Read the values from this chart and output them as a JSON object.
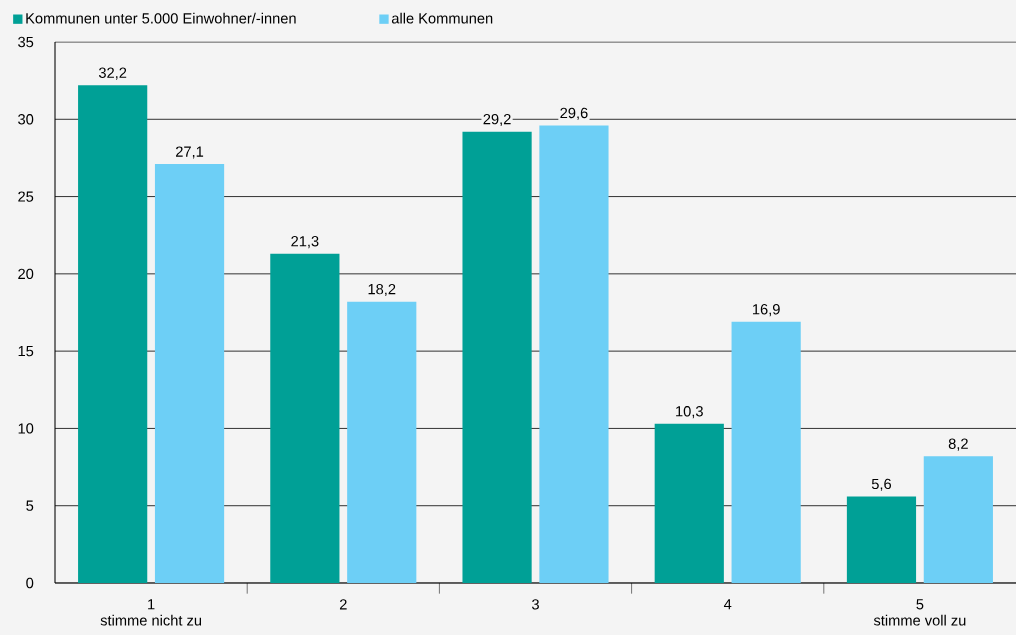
{
  "chart_data": {
    "type": "bar",
    "categories": [
      "1",
      "2",
      "3",
      "4",
      "5"
    ],
    "series": [
      {
        "name": "Kommunen unter 5.000 Einwohner/-innen",
        "color": "#00a096",
        "values": [
          32.2,
          21.3,
          29.2,
          10.3,
          5.6
        ],
        "value_labels": [
          "32,2",
          "21,3",
          "29,2",
          "10,3",
          "5,6"
        ]
      },
      {
        "name": "alle Kommunen",
        "color": "#6dcff6",
        "values": [
          27.1,
          18.2,
          29.6,
          16.9,
          8.2
        ],
        "value_labels": [
          "27,1",
          "18,2",
          "29,6",
          "16,9",
          "8,2"
        ]
      }
    ],
    "ylim": [
      0,
      35
    ],
    "yticks": [
      0,
      5,
      10,
      15,
      20,
      25,
      30,
      35
    ],
    "grid": "y",
    "legend": "top left",
    "annotations": [
      "stimme nicht zu",
      "stimme voll zu"
    ]
  }
}
